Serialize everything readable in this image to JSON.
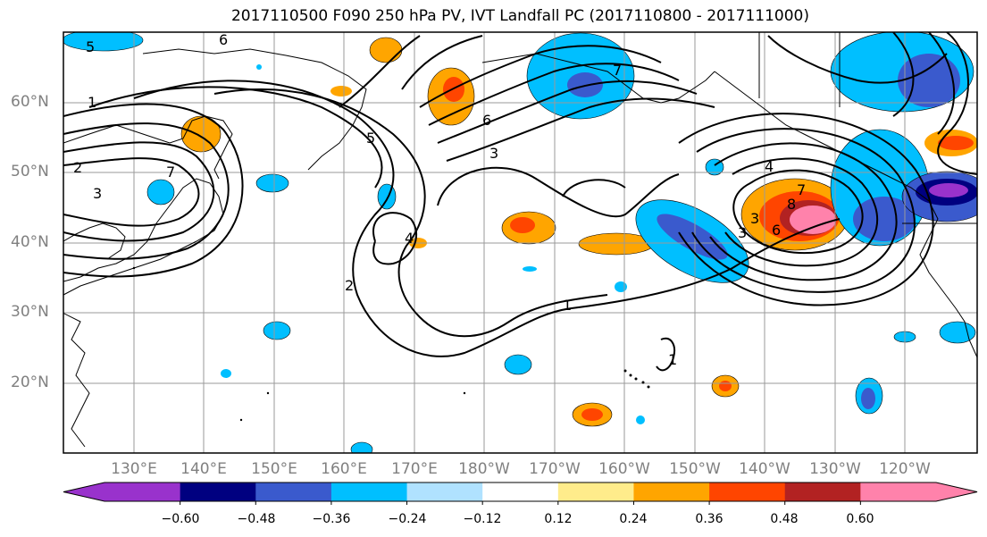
{
  "title": "2017110500 F090 250 hPa PV, IVT Landfall PC (2017110800 - 2017111000)",
  "lat_labels": [
    "60°N",
    "50°N",
    "40°N",
    "30°N",
    "20°N"
  ],
  "lon_labels": [
    "130°E",
    "140°E",
    "150°E",
    "160°E",
    "170°E",
    "180°W",
    "170°W",
    "160°W",
    "150°W",
    "140°W",
    "130°W",
    "120°W"
  ],
  "colorbar": {
    "colors": [
      "#9932cc",
      "#000080",
      "#3a5acd",
      "#00bfff",
      "#b0e2ff",
      "#ffffff",
      "#ffec8b",
      "#ffa500",
      "#ff4500",
      "#b22222",
      "#ff82ab"
    ],
    "tick_labels": [
      "−0.60",
      "−0.48",
      "−0.36",
      "−0.24",
      "−0.12",
      "0.12",
      "0.24",
      "0.36",
      "0.48",
      "0.60"
    ]
  },
  "contour_labels": [
    "5",
    "6",
    "1",
    "2",
    "3",
    "7",
    "4",
    "6",
    "3",
    "5",
    "7",
    "2",
    "1",
    "3",
    "4",
    "7",
    "8",
    "3",
    "6",
    "1"
  ]
}
